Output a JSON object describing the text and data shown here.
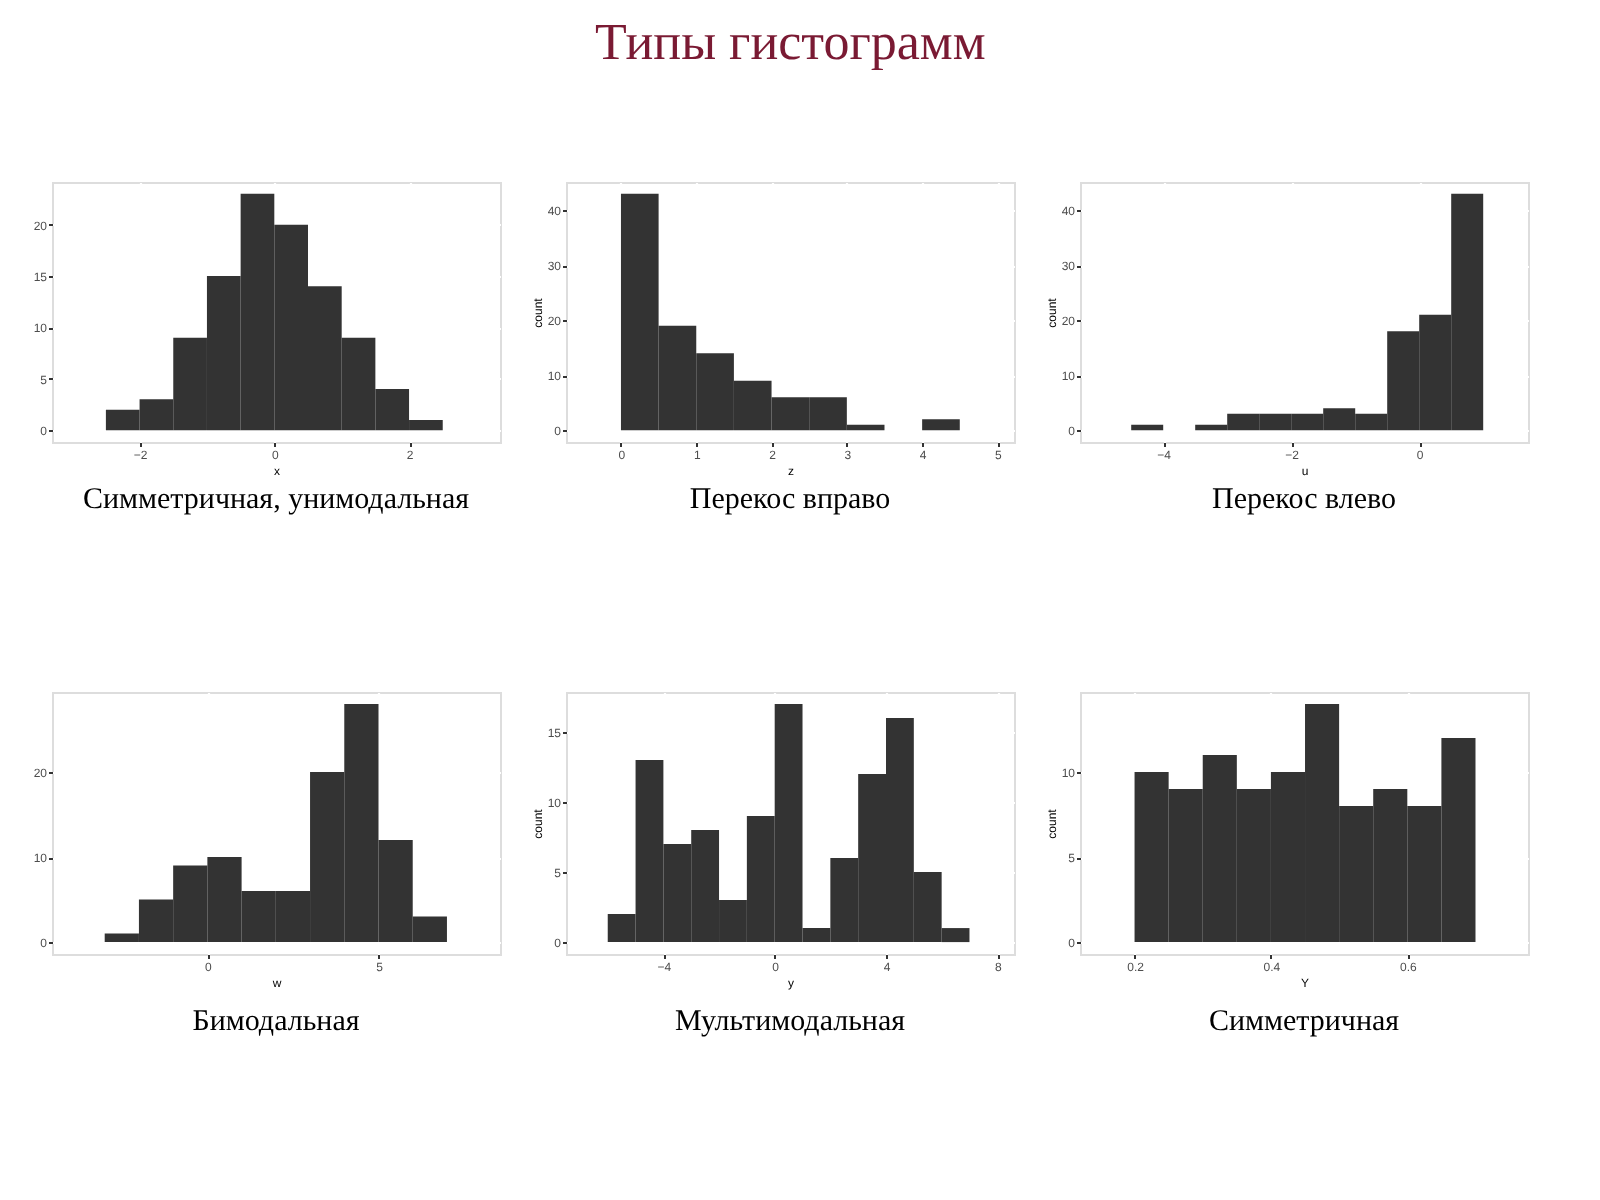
{
  "chart_data": [
    {
      "type": "other",
      "title": "Типы гистограмм"
    },
    {
      "type": "histogram",
      "title": "Симметричная, унимодальная",
      "xlabel": "x",
      "bins": [
        -2.5,
        -2,
        -1.5,
        -1,
        -0.5,
        0,
        0.5,
        1,
        1.5,
        2,
        2.5
      ],
      "values": [
        2,
        3,
        9,
        15,
        23,
        20,
        14,
        9,
        4,
        1
      ],
      "color": "#333333",
      "xlim": [
        -3.3,
        3.35
      ],
      "xticks": [
        -2,
        0,
        2
      ],
      "ylim": [
        -1.15,
        24.15
      ],
      "yticks": [
        0,
        5,
        10,
        15,
        20
      ],
      "grid": true
    },
    {
      "type": "histogram",
      "title": "Перекос вправо",
      "xlabel": "z",
      "ylabel": "count",
      "bins": [
        0,
        0.5,
        1,
        1.5,
        2,
        2.5,
        3,
        3.5,
        4,
        4.5
      ],
      "values": [
        43,
        19,
        14,
        9,
        6,
        6,
        1,
        0,
        2
      ],
      "color": "#333333",
      "xlim": [
        -0.73,
        5.22
      ],
      "xticks": [
        0,
        1,
        2,
        3,
        4,
        5
      ],
      "ylim": [
        -2.15,
        45.15
      ],
      "yticks": [
        0,
        10,
        20,
        30,
        40
      ],
      "grid": true
    },
    {
      "type": "histogram",
      "title": "Перекос влево",
      "xlabel": "u",
      "ylabel": "count",
      "bins": [
        -4.5,
        -4,
        -3.5,
        -3,
        -2.5,
        -2,
        -1.5,
        -1,
        -0.5,
        0,
        0.5,
        1
      ],
      "values": [
        1,
        0,
        1,
        3,
        3,
        3,
        4,
        3,
        18,
        21,
        43
      ],
      "color": "#333333",
      "xlim": [
        -5.3,
        1.7
      ],
      "xticks": [
        -4,
        -2,
        0
      ],
      "ylim": [
        -2.15,
        45.15
      ],
      "yticks": [
        0,
        10,
        20,
        30,
        40
      ],
      "grid": true
    },
    {
      "type": "histogram",
      "title": "Бимодальная",
      "xlabel": "w",
      "bins": [
        -3,
        -2,
        -1,
        0,
        1,
        2,
        3,
        4,
        5,
        6,
        7
      ],
      "values": [
        1,
        5,
        9,
        10,
        6,
        6,
        20,
        28,
        12,
        3
      ],
      "color": "#333333",
      "xlim": [
        -4.54,
        8.55
      ],
      "xticks": [
        0,
        5
      ],
      "ylim": [
        -1.4,
        29.4
      ],
      "yticks": [
        0,
        10,
        20
      ],
      "grid": true
    },
    {
      "type": "histogram",
      "title": "Мультимодальная",
      "xlabel": "y",
      "ylabel": "count",
      "bins": [
        -6,
        -5,
        -4,
        -3,
        -2,
        -1,
        0,
        1,
        2,
        3,
        4,
        5,
        6,
        7
      ],
      "values": [
        2,
        13,
        7,
        8,
        3,
        9,
        17,
        1,
        6,
        12,
        16,
        5,
        1
      ],
      "color": "#333333",
      "xlim": [
        -7.5,
        8.6
      ],
      "xticks": [
        -4,
        0,
        4,
        8
      ],
      "ylim": [
        -0.85,
        17.85
      ],
      "yticks": [
        0,
        5,
        10,
        15
      ],
      "grid": true
    },
    {
      "type": "histogram",
      "title": "Симметричная",
      "xlabel": "Y",
      "ylabel": "count",
      "bins": [
        0.2,
        0.25,
        0.3,
        0.35,
        0.4,
        0.45,
        0.5,
        0.55,
        0.6,
        0.65,
        0.7
      ],
      "values": [
        10,
        9,
        11,
        9,
        10,
        14,
        8,
        9,
        8,
        12
      ],
      "color": "#333333",
      "xlim": [
        0.12,
        0.777
      ],
      "xticks": [
        0.2,
        0.4,
        0.6
      ],
      "ylim": [
        -0.7,
        14.7
      ],
      "yticks": [
        0,
        5,
        10
      ],
      "grid": true
    }
  ]
}
